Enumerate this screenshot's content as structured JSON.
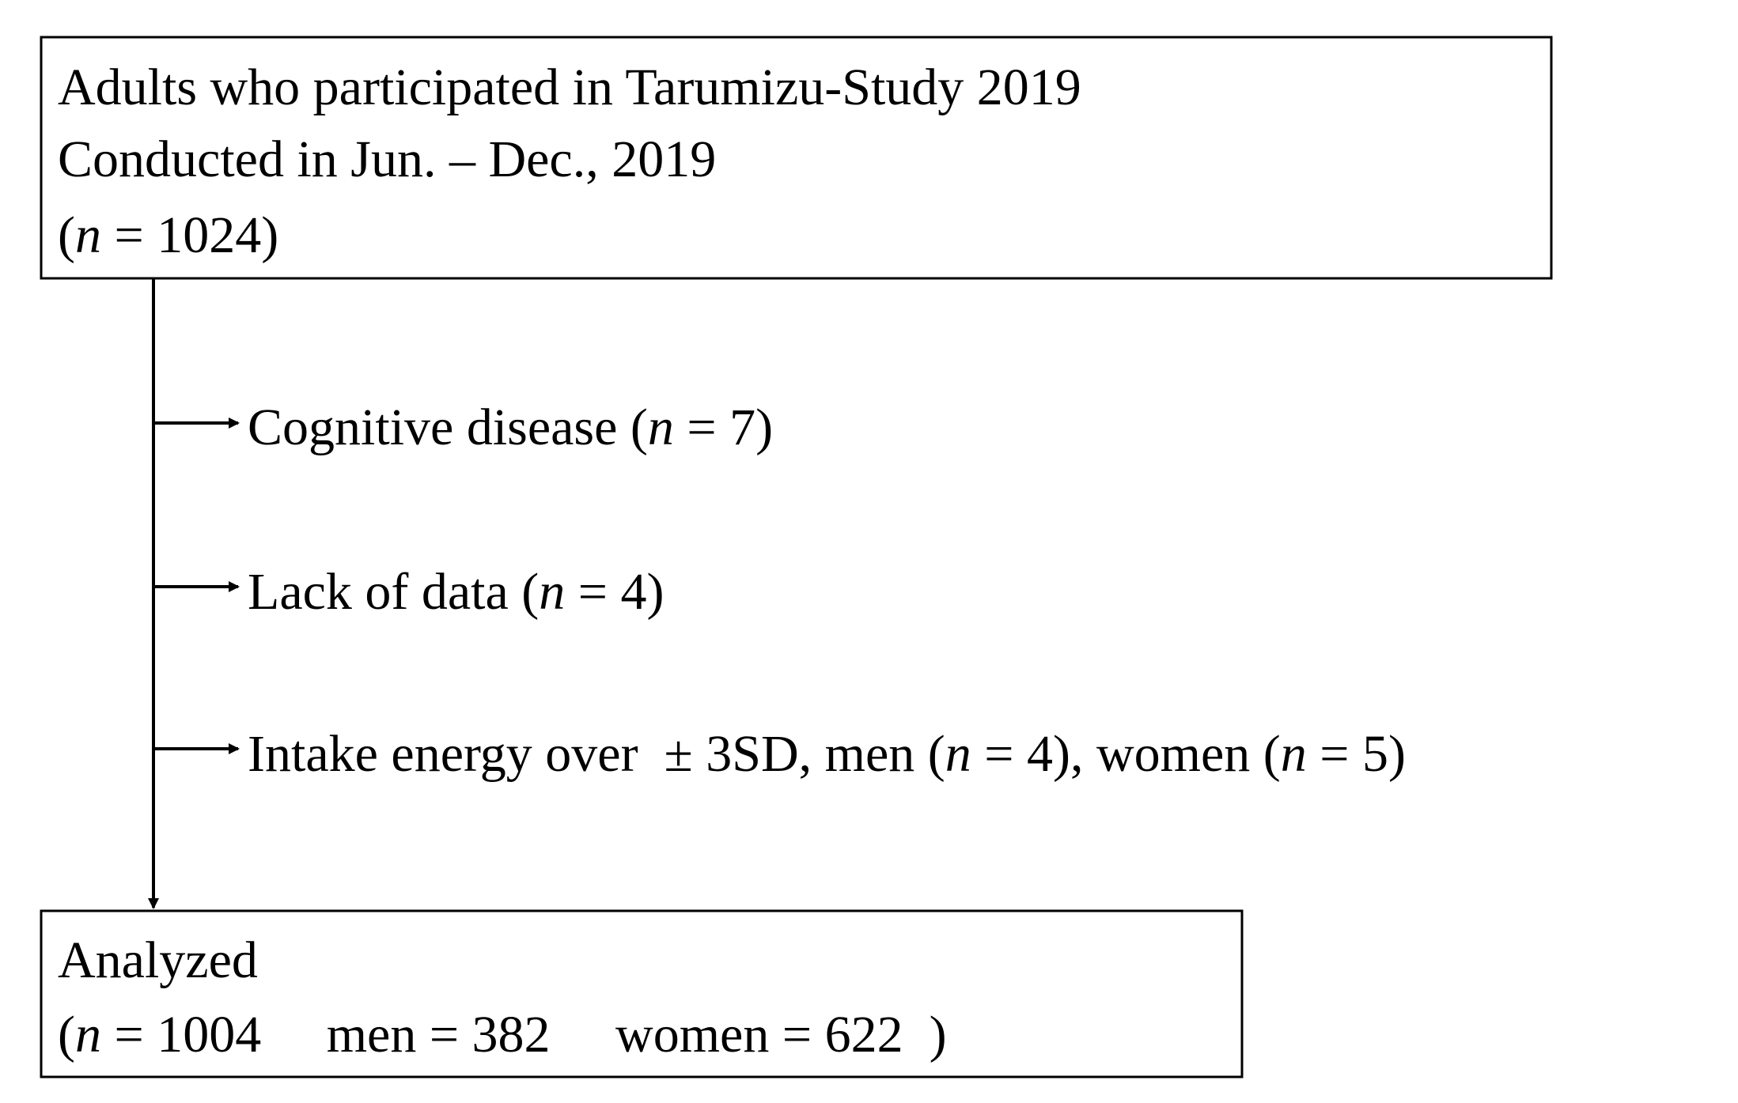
{
  "nodes": [
    {
      "lines": [
        [
          {
            "text": "Adults who participated in Tarumizu-Study 2019"
          }
        ],
        [
          {
            "text": "Conducted in Jun. – Dec., 2019"
          }
        ],
        [
          {
            "text": "("
          },
          {
            "text": "n",
            "italic": true
          },
          {
            "text": " = 1024)"
          }
        ]
      ]
    },
    {
      "lines": [
        [
          {
            "text": "Analyzed"
          }
        ],
        [
          {
            "text": "("
          },
          {
            "text": "n",
            "italic": true
          },
          {
            "text": " = 1004     men = 382     women = 622  )"
          }
        ]
      ]
    }
  ],
  "exclusions": [
    {
      "segments": [
        {
          "text": "Cognitive disease ("
        },
        {
          "text": "n",
          "italic": true
        },
        {
          "text": " = 7)"
        }
      ]
    },
    {
      "segments": [
        {
          "text": "Lack of data ("
        },
        {
          "text": "n",
          "italic": true
        },
        {
          "text": " = 4)"
        }
      ]
    },
    {
      "segments": [
        {
          "text": "Intake energy over  ± 3SD, men ("
        },
        {
          "text": "n",
          "italic": true
        },
        {
          "text": " = 4), women ("
        },
        {
          "text": "n",
          "italic": true
        },
        {
          "text": " = 5)"
        }
      ]
    }
  ]
}
